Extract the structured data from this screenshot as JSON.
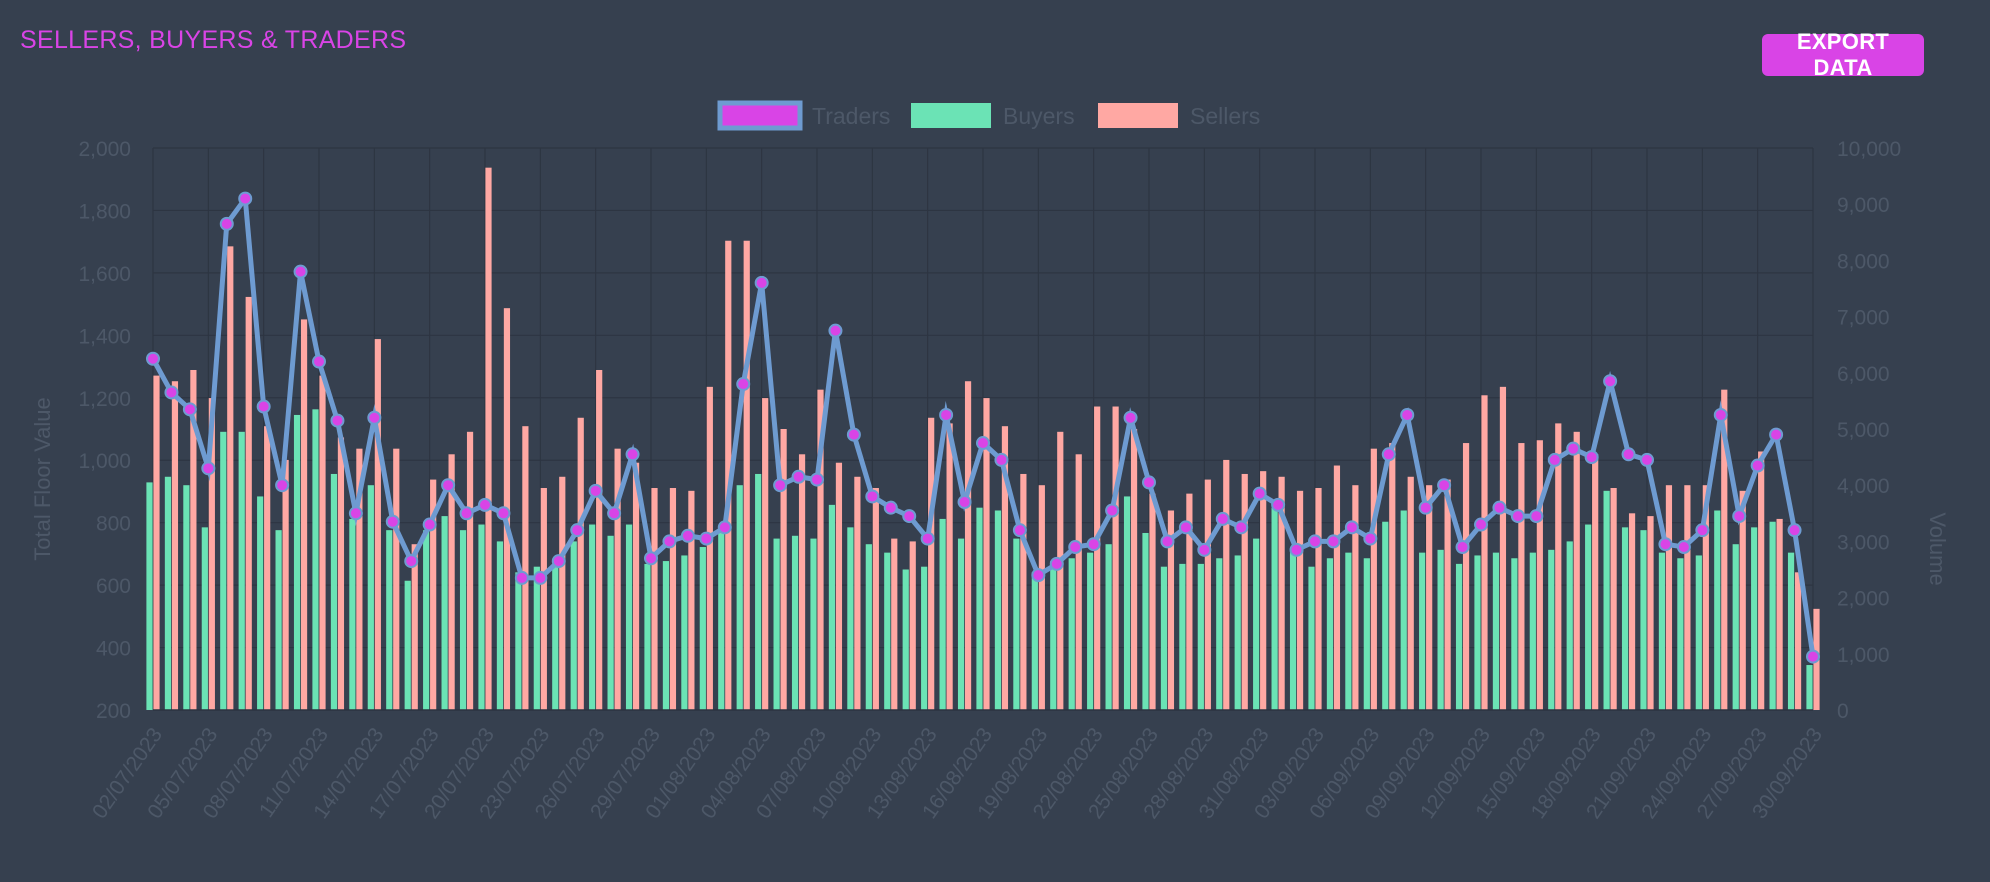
{
  "header": {
    "title": "SELLERS, BUYERS & TRADERS",
    "export_label": "EXPORT DATA"
  },
  "chart_data": {
    "type": "bar",
    "title": "",
    "ylabel_left": "Total Floor Value",
    "ylabel_right": "Volume",
    "ylim_left": [
      200,
      2000
    ],
    "ylim_right": [
      0,
      10000
    ],
    "yticks_left": [
      "200",
      "400",
      "600",
      "800",
      "1,000",
      "1,200",
      "1,400",
      "1,600",
      "1,800",
      "2,000"
    ],
    "yticks_right": [
      "0",
      "1,000",
      "2,000",
      "3,000",
      "4,000",
      "5,000",
      "6,000",
      "7,000",
      "8,000",
      "9,000",
      "10,000"
    ],
    "legend_position": "top",
    "grid": true,
    "x": [
      "02/07/2023",
      "03/07/2023",
      "04/07/2023",
      "05/07/2023",
      "06/07/2023",
      "07/07/2023",
      "08/07/2023",
      "09/07/2023",
      "10/07/2023",
      "11/07/2023",
      "12/07/2023",
      "13/07/2023",
      "14/07/2023",
      "15/07/2023",
      "16/07/2023",
      "17/07/2023",
      "18/07/2023",
      "19/07/2023",
      "20/07/2023",
      "21/07/2023",
      "22/07/2023",
      "23/07/2023",
      "24/07/2023",
      "25/07/2023",
      "26/07/2023",
      "27/07/2023",
      "28/07/2023",
      "29/07/2023",
      "30/07/2023",
      "31/07/2023",
      "01/08/2023",
      "02/08/2023",
      "03/08/2023",
      "04/08/2023",
      "05/08/2023",
      "06/08/2023",
      "07/08/2023",
      "08/08/2023",
      "09/08/2023",
      "10/08/2023",
      "11/08/2023",
      "12/08/2023",
      "13/08/2023",
      "14/08/2023",
      "15/08/2023",
      "16/08/2023",
      "17/08/2023",
      "18/08/2023",
      "19/08/2023",
      "20/08/2023",
      "21/08/2023",
      "22/08/2023",
      "23/08/2023",
      "24/08/2023",
      "25/08/2023",
      "26/08/2023",
      "27/08/2023",
      "28/08/2023",
      "29/08/2023",
      "30/08/2023",
      "31/08/2023",
      "01/09/2023",
      "02/09/2023",
      "03/09/2023",
      "04/09/2023",
      "05/09/2023",
      "06/09/2023",
      "07/09/2023",
      "08/09/2023",
      "09/09/2023",
      "10/09/2023",
      "11/09/2023",
      "12/09/2023",
      "13/09/2023",
      "14/09/2023",
      "15/09/2023",
      "16/09/2023",
      "17/09/2023",
      "18/09/2023",
      "19/09/2023",
      "20/09/2023",
      "21/09/2023",
      "22/09/2023",
      "23/09/2023",
      "24/09/2023",
      "25/09/2023",
      "26/09/2023",
      "27/09/2023",
      "28/09/2023",
      "29/09/2023",
      "30/09/2023"
    ],
    "series": [
      {
        "name": "Traders",
        "type": "line",
        "axis": "right",
        "color": "#d944e6",
        "line_color": "#6e9bd1",
        "values": [
          6250,
          5650,
          5350,
          4300,
          8650,
          9100,
          5400,
          4000,
          7800,
          6200,
          5150,
          3500,
          5200,
          3350,
          2650,
          3300,
          4000,
          3500,
          3650,
          3500,
          2350,
          2350,
          2650,
          3200,
          3900,
          3500,
          4550,
          2700,
          3000,
          3100,
          3050,
          3250,
          5800,
          7600,
          4000,
          4150,
          4100,
          6750,
          4900,
          3800,
          3600,
          3450,
          3050,
          5250,
          3700,
          4750,
          4450,
          3200,
          2400,
          2600,
          2900,
          2950,
          3550,
          5200,
          4050,
          3000,
          3250,
          2850,
          3400,
          3250,
          3850,
          3650,
          2850,
          3000,
          3000,
          3250,
          3050,
          4550,
          5250,
          3600,
          4000,
          2900,
          3300,
          3600,
          3450,
          3450,
          4450,
          4650,
          4500,
          5850,
          4550,
          4450,
          2950,
          2900,
          3200,
          5250,
          3450,
          4350,
          4900,
          3200,
          950
        ]
      },
      {
        "name": "Buyers",
        "type": "bar",
        "axis": "right",
        "color": "#6be3b5",
        "values": [
          4050,
          4150,
          4000,
          3250,
          4950,
          4950,
          3800,
          3200,
          5250,
          5350,
          4200,
          3400,
          4000,
          3200,
          2300,
          3200,
          3450,
          3200,
          3300,
          3000,
          2450,
          2550,
          2600,
          3000,
          3300,
          3100,
          3300,
          2600,
          2650,
          2750,
          2900,
          3150,
          4000,
          4200,
          3050,
          3100,
          3050,
          3650,
          3250,
          2950,
          2800,
          2500,
          2550,
          3400,
          3050,
          3600,
          3550,
          3050,
          2450,
          2650,
          2700,
          2800,
          2950,
          3800,
          3150,
          2550,
          2600,
          2600,
          2700,
          2750,
          3050,
          3600,
          2850,
          2550,
          2700,
          2800,
          2700,
          3350,
          3550,
          2800,
          2850,
          2600,
          2750,
          2800,
          2700,
          2800,
          2850,
          3000,
          3300,
          3900,
          3250,
          3200,
          2800,
          2700,
          2750,
          3550,
          2950,
          3250,
          3350,
          2800,
          800
        ]
      },
      {
        "name": "Sellers",
        "type": "bar",
        "axis": "right",
        "color": "#ffa8a3",
        "values": [
          5950,
          5850,
          6050,
          5550,
          8250,
          7350,
          5050,
          4450,
          6950,
          5950,
          4850,
          4650,
          6600,
          4650,
          2950,
          4100,
          4550,
          4950,
          9650,
          7150,
          5050,
          3950,
          4150,
          5200,
          6050,
          4650,
          4400,
          3950,
          3950,
          3900,
          5750,
          8350,
          8350,
          5550,
          5000,
          4550,
          5700,
          4400,
          4150,
          3950,
          3050,
          3000,
          5200,
          5100,
          5850,
          5550,
          5050,
          4200,
          4000,
          4950,
          4550,
          5400,
          5400,
          5000,
          3850,
          3550,
          3850,
          4100,
          4450,
          4200,
          4250,
          4150,
          3900,
          3950,
          4350,
          4000,
          4650,
          4750,
          4150,
          4000,
          4100,
          4750,
          5600,
          5750,
          4750,
          4800,
          5100,
          4950,
          4550,
          3950,
          3500,
          3450,
          4000,
          4000,
          4000,
          5700,
          3900,
          4600,
          3400,
          2450,
          1800
        ]
      }
    ]
  }
}
